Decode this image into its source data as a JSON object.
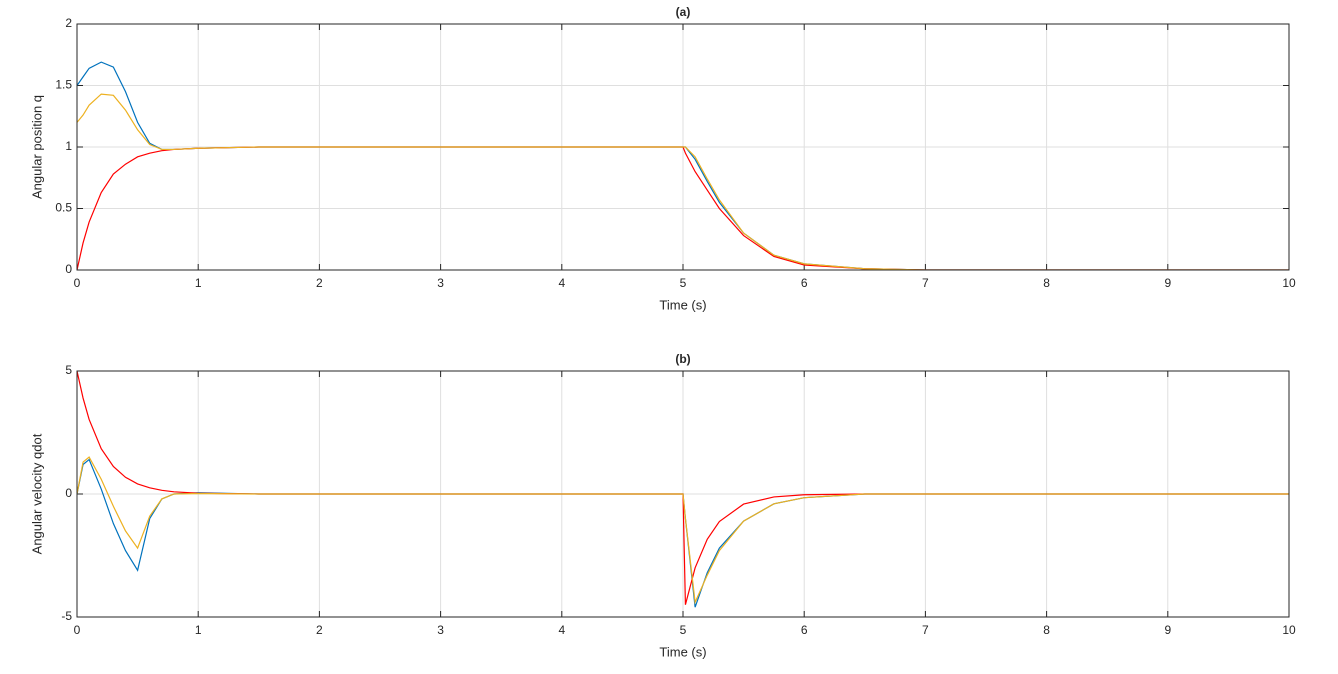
{
  "chart_data": [
    {
      "type": "line",
      "title": "(a)",
      "x_label": "Time (s)",
      "y_label": "Angular position q",
      "x": [
        0,
        0.05,
        0.1,
        0.2,
        0.3,
        0.4,
        0.5,
        0.6,
        0.7,
        0.8,
        1,
        1.5,
        2,
        3,
        4,
        5,
        5.02,
        5.1,
        5.2,
        5.3,
        5.5,
        5.75,
        6,
        6.5,
        7,
        8,
        9,
        10
      ],
      "xlim": [
        0,
        10
      ],
      "xticks": [
        0,
        1,
        2,
        3,
        4,
        5,
        6,
        7,
        8,
        9,
        10
      ],
      "ylim": [
        0,
        2
      ],
      "yticks": [
        0,
        0.5,
        1,
        1.5,
        2
      ],
      "grid": true,
      "series": [
        {
          "color": "#0072bd",
          "values": [
            1.5,
            1.57,
            1.64,
            1.69,
            1.65,
            1.45,
            1.2,
            1.03,
            0.98,
            0.98,
            0.99,
            1,
            1,
            1,
            1,
            1,
            1,
            0.9,
            0.72,
            0.55,
            0.3,
            0.12,
            0.05,
            0.01,
            0,
            0,
            0,
            0
          ]
        },
        {
          "color": "#ff0000",
          "values": [
            0,
            0.22,
            0.39,
            0.63,
            0.78,
            0.86,
            0.92,
            0.95,
            0.97,
            0.98,
            0.99,
            1,
            1,
            1,
            1,
            1,
            0.95,
            0.8,
            0.65,
            0.5,
            0.28,
            0.11,
            0.04,
            0.01,
            0,
            0,
            0,
            0
          ]
        },
        {
          "color": "#edb120",
          "values": [
            1.2,
            1.26,
            1.34,
            1.43,
            1.42,
            1.3,
            1.14,
            1.02,
            0.98,
            0.98,
            0.99,
            1,
            1,
            1,
            1,
            1,
            1,
            0.92,
            0.74,
            0.57,
            0.3,
            0.12,
            0.05,
            0.01,
            0,
            0,
            0,
            0
          ]
        }
      ]
    },
    {
      "type": "line",
      "title": "(b)",
      "x_label": "Time (s)",
      "y_label": "Angular velocity qdot",
      "x": [
        0,
        0.05,
        0.1,
        0.2,
        0.3,
        0.4,
        0.5,
        0.6,
        0.7,
        0.8,
        1,
        1.5,
        2,
        3,
        4,
        5,
        5.02,
        5.1,
        5.2,
        5.3,
        5.5,
        5.75,
        6,
        6.5,
        7,
        8,
        9,
        10
      ],
      "xlim": [
        0,
        10
      ],
      "xticks": [
        0,
        1,
        2,
        3,
        4,
        5,
        6,
        7,
        8,
        9,
        10
      ],
      "ylim": [
        -5,
        5
      ],
      "yticks": [
        -5,
        0,
        5
      ],
      "grid": true,
      "series": [
        {
          "color": "#0072bd",
          "values": [
            0,
            1.2,
            1.4,
            0.2,
            -1.2,
            -2.3,
            -3.1,
            -1,
            -0.2,
            0,
            0.05,
            0,
            0,
            0,
            0,
            0,
            -1,
            -4.6,
            -3.2,
            -2.2,
            -1.1,
            -0.4,
            -0.15,
            0,
            0,
            0,
            0,
            0
          ]
        },
        {
          "color": "#ff0000",
          "values": [
            5,
            3.9,
            3.03,
            1.84,
            1.12,
            0.68,
            0.41,
            0.25,
            0.15,
            0.09,
            0.03,
            0,
            0,
            0,
            0,
            0,
            -4.5,
            -3,
            -1.84,
            -1.12,
            -0.41,
            -0.12,
            -0.03,
            0,
            0,
            0,
            0,
            0
          ]
        },
        {
          "color": "#edb120",
          "values": [
            0,
            1.3,
            1.5,
            0.6,
            -0.5,
            -1.5,
            -2.2,
            -0.9,
            -0.2,
            0,
            0.02,
            0,
            0,
            0,
            0,
            0,
            -1,
            -4.4,
            -3.3,
            -2.3,
            -1.1,
            -0.4,
            -0.15,
            0,
            0,
            0,
            0,
            0
          ]
        }
      ]
    }
  ]
}
